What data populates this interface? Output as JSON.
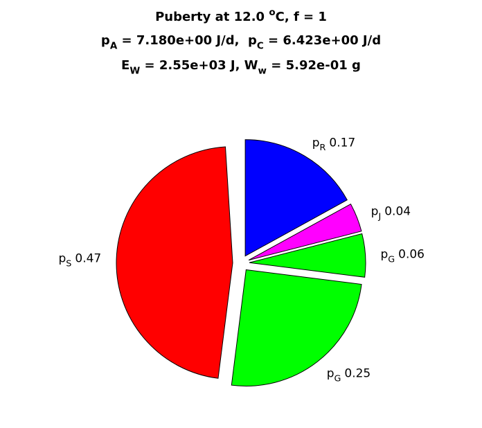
{
  "chart_data": {
    "type": "pie",
    "title": [
      [
        {
          "text": "Puberty at 12.0 "
        },
        {
          "text": "o",
          "baseline": "super"
        },
        {
          "text": "C, f = 1"
        }
      ],
      [
        {
          "text": "p"
        },
        {
          "text": "A",
          "baseline": "sub"
        },
        {
          "text": " = 7.180e+00 J/d,  p"
        },
        {
          "text": "C",
          "baseline": "sub"
        },
        {
          "text": " = 6.423e+00 J/d"
        }
      ],
      [
        {
          "text": "E"
        },
        {
          "text": "W",
          "baseline": "sub"
        },
        {
          "text": " = 2.55e+03 J, W"
        },
        {
          "text": "w",
          "baseline": "sub"
        },
        {
          "text": " = 5.92e-01 g"
        }
      ]
    ],
    "labels": [
      [
        {
          "text": "p"
        },
        {
          "text": "R",
          "baseline": "sub"
        }
      ],
      [
        {
          "text": "p"
        },
        {
          "text": "J",
          "baseline": "sub"
        }
      ],
      [
        {
          "text": "p"
        },
        {
          "text": "G",
          "baseline": "sub"
        }
      ],
      [
        {
          "text": "p"
        },
        {
          "text": "G",
          "baseline": "sub"
        }
      ],
      [
        {
          "text": "p"
        },
        {
          "text": "S",
          "baseline": "sub"
        }
      ]
    ],
    "values": [
      0.17,
      0.04,
      0.06,
      0.25,
      0.47
    ],
    "colors": [
      "#0000ff",
      "#ff00ff",
      "#00ff00",
      "#00ff00",
      "#ff0000"
    ]
  }
}
